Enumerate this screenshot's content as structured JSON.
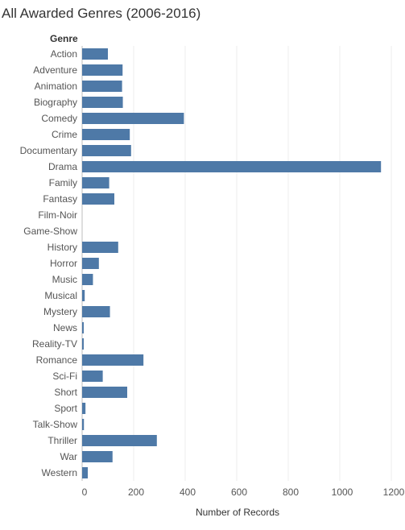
{
  "chart_data": {
    "type": "bar",
    "orientation": "horizontal",
    "title": "All Awarded Genres (2006-2016)",
    "row_header": "Genre",
    "xlabel": "Number of Records",
    "xlim": [
      0,
      1200
    ],
    "xticks": [
      "0",
      "200",
      "400",
      "600",
      "800",
      "1000",
      "1200"
    ],
    "grid": true,
    "bar_color": "#4e79a7",
    "categories": [
      "Action",
      "Adventure",
      "Animation",
      "Biography",
      "Comedy",
      "Crime",
      "Documentary",
      "Drama",
      "Family",
      "Fantasy",
      "Film-Noir",
      "Game-Show",
      "History",
      "Horror",
      "Music",
      "Musical",
      "Mystery",
      "News",
      "Reality-TV",
      "Romance",
      "Sci-Fi",
      "Short",
      "Sport",
      "Talk-Show",
      "Thriller",
      "War",
      "Western"
    ],
    "values": [
      100,
      157,
      155,
      158,
      395,
      185,
      190,
      1160,
      105,
      125,
      0,
      0,
      140,
      65,
      42,
      10,
      108,
      5,
      4,
      238,
      80,
      175,
      13,
      7,
      290,
      118,
      22
    ]
  }
}
